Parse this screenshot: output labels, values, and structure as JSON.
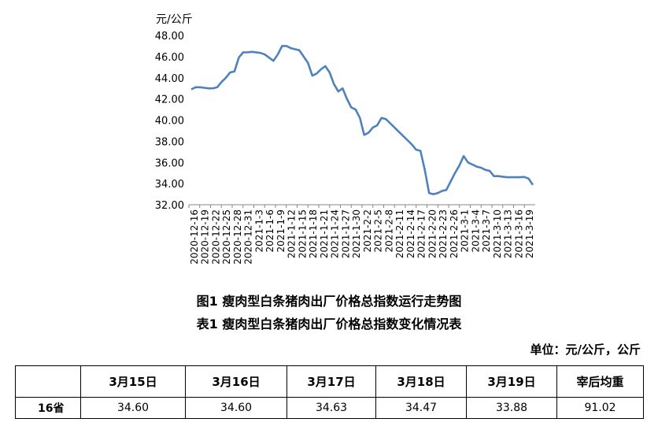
{
  "chart_data": {
    "type": "line",
    "ylabel": "元/公斤",
    "ylim": [
      32,
      48
    ],
    "yticks": [
      "32.00",
      "34.00",
      "36.00",
      "38.00",
      "40.00",
      "42.00",
      "44.00",
      "46.00",
      "48.00"
    ],
    "xtick_labels": [
      "2020-12-16",
      "2020-12-19",
      "2020-12-22",
      "2020-12-25",
      "2020-12-28",
      "2020-12-31",
      "2021-1-3",
      "2021-1-6",
      "2021-1-9",
      "2021-1-12",
      "2021-1-15",
      "2021-1-18",
      "2021-1-21",
      "2021-1-24",
      "2021-1-27",
      "2021-1-30",
      "2021-2-2",
      "2021-2-5",
      "2021-2-8",
      "2021-2-11",
      "2021-2-14",
      "2021-2-17",
      "2021-2-20",
      "2021-2-23",
      "2021-2-26",
      "2021-3-1",
      "2021-3-4",
      "2021-3-7",
      "2021-3-10",
      "2021-3-13",
      "2021-3-16",
      "2021-3-19"
    ],
    "x_start": "2020-12-16",
    "values": [
      42.9,
      43.1,
      43.1,
      43.05,
      43.0,
      43.0,
      43.1,
      43.6,
      44.0,
      44.5,
      44.6,
      45.9,
      46.4,
      46.4,
      46.45,
      46.4,
      46.35,
      46.2,
      45.9,
      45.6,
      46.2,
      47.0,
      47.0,
      46.8,
      46.7,
      46.6,
      46.0,
      45.4,
      44.2,
      44.4,
      44.8,
      45.1,
      44.5,
      43.4,
      42.7,
      43.0,
      42.0,
      41.2,
      41.0,
      40.2,
      38.6,
      38.8,
      39.3,
      39.5,
      40.2,
      40.1,
      39.7,
      39.3,
      38.9,
      38.5,
      38.1,
      37.7,
      37.2,
      37.1,
      35.3,
      33.1,
      33.0,
      33.1,
      33.3,
      33.4,
      34.2,
      35.0,
      35.7,
      36.6,
      36.0,
      35.8,
      35.6,
      35.5,
      35.3,
      35.2,
      34.7,
      34.7,
      34.65,
      34.6,
      34.6,
      34.6,
      34.6,
      34.63,
      34.47,
      33.88
    ],
    "color": "#4f81bd"
  },
  "captions": {
    "figure": "图1 瘦肉型白条猪肉出厂价格总指数运行走势图",
    "table": "表1 瘦肉型白条猪肉出厂价格总指数变化情况表"
  },
  "unit": "单位：元/公斤，公斤",
  "table": {
    "headers": [
      "",
      "3月15日",
      "3月16日",
      "3月17日",
      "3月18日",
      "3月19日",
      "宰后均重"
    ],
    "rows": [
      [
        "16省",
        "34.60",
        "34.60",
        "34.63",
        "34.47",
        "33.88",
        "91.02"
      ]
    ]
  }
}
